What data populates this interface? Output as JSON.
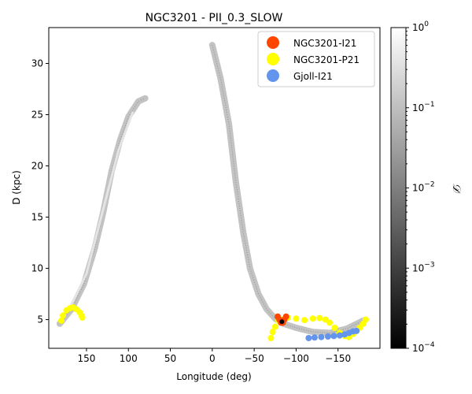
{
  "chart_data": {
    "type": "scatter",
    "title": "NGC3201 - PII_0.3_SLOW",
    "xlabel": "Longitude (deg)",
    "ylabel": "D (kpc)",
    "xlim": [
      195,
      -200
    ],
    "ylim": [
      2.2,
      33.5
    ],
    "xticks": [
      150,
      100,
      50,
      0,
      -50,
      -100,
      -150
    ],
    "xtick_labels": [
      "150",
      "100",
      "50",
      "0",
      "−50",
      "−100",
      "−150"
    ],
    "yticks": [
      5,
      10,
      15,
      20,
      25,
      30
    ],
    "ytick_labels": [
      "5",
      "10",
      "15",
      "20",
      "25",
      "30"
    ],
    "colorbar": {
      "label": "𝒟",
      "scale": "log",
      "range": [
        0.0001,
        1
      ],
      "tick_bases": [
        "10",
        "10",
        "10",
        "10",
        "10"
      ],
      "tick_exponents": [
        "−4",
        "−3",
        "−2",
        "−1",
        "0"
      ],
      "tick_values": [
        0.0001,
        0.001,
        0.01,
        0.1,
        1
      ],
      "colormap": "gray"
    },
    "legend": {
      "placement": "top-right",
      "entries": [
        {
          "label": "NGC3201-I21",
          "color": "#ff4500"
        },
        {
          "label": "NGC3201-P21",
          "color": "#ffff00"
        },
        {
          "label": "Gjoll-I21",
          "color": "#6495ed"
        }
      ]
    },
    "density_streams": [
      {
        "name": "left-arm",
        "path": [
          [
            182,
            4.6
          ],
          [
            168,
            6.0
          ],
          [
            153,
            8.5
          ],
          [
            140,
            12.0
          ],
          [
            130,
            15.5
          ],
          [
            120,
            19.5
          ],
          [
            110,
            22.5
          ],
          [
            100,
            24.8
          ],
          [
            88,
            26.3
          ],
          [
            80,
            26.6
          ]
        ],
        "core": [
          [
            172,
            5.8
          ],
          [
            150,
            9.5
          ],
          [
            130,
            15.8
          ],
          [
            112,
            21.5
          ],
          [
            95,
            25.2
          ]
        ]
      },
      {
        "name": "right-arm",
        "path": [
          [
            0,
            31.8
          ],
          [
            -10,
            28.5
          ],
          [
            -20,
            24.0
          ],
          [
            -28,
            18.5
          ],
          [
            -37,
            13.5
          ],
          [
            -45,
            10.0
          ],
          [
            -55,
            7.5
          ],
          [
            -65,
            6.0
          ],
          [
            -75,
            5.1
          ],
          [
            -85,
            4.6
          ],
          [
            -100,
            4.2
          ],
          [
            -120,
            3.8
          ],
          [
            -140,
            3.7
          ],
          [
            -160,
            4.1
          ],
          [
            -180,
            4.9
          ]
        ]
      }
    ],
    "series": [
      {
        "name": "NGC3201-P21",
        "color": "#ffff00",
        "x": [
          180,
          178,
          174,
          170,
          166,
          162,
          158,
          156,
          155
        ],
        "y": [
          4.9,
          5.4,
          5.9,
          6.1,
          6.2,
          6.0,
          5.7,
          5.4,
          5.2
        ]
      },
      {
        "name": "NGC3201-P21",
        "color": "#ffff00",
        "x": [
          -70,
          -72,
          -75,
          -79,
          -84,
          -90,
          -100,
          -110,
          -120,
          -128,
          -135,
          -140,
          -146,
          -152,
          -158,
          -163,
          -168,
          -172,
          -176,
          -180,
          -183
        ],
        "y": [
          3.2,
          3.8,
          4.3,
          4.9,
          5.0,
          5.2,
          5.1,
          4.95,
          5.1,
          5.15,
          5.0,
          4.7,
          4.2,
          3.7,
          3.4,
          3.3,
          3.6,
          3.9,
          4.2,
          4.6,
          5.0
        ]
      },
      {
        "name": "Gjoll-I21",
        "color": "#6495ed",
        "x": [
          -115,
          -122,
          -130,
          -138,
          -145,
          -152,
          -158,
          -163,
          -168,
          -172
        ],
        "y": [
          3.2,
          3.25,
          3.3,
          3.35,
          3.4,
          3.45,
          3.55,
          3.7,
          3.85,
          3.9
        ]
      },
      {
        "name": "NGC3201-I21",
        "color": "#ff4500",
        "x": [
          -78,
          -80,
          -82,
          -84,
          -86,
          -88
        ],
        "y": [
          5.3,
          5.0,
          4.7,
          4.7,
          5.0,
          5.3
        ]
      }
    ],
    "cluster_marker": {
      "x": -83,
      "y": 4.8,
      "color": "#000000"
    }
  }
}
